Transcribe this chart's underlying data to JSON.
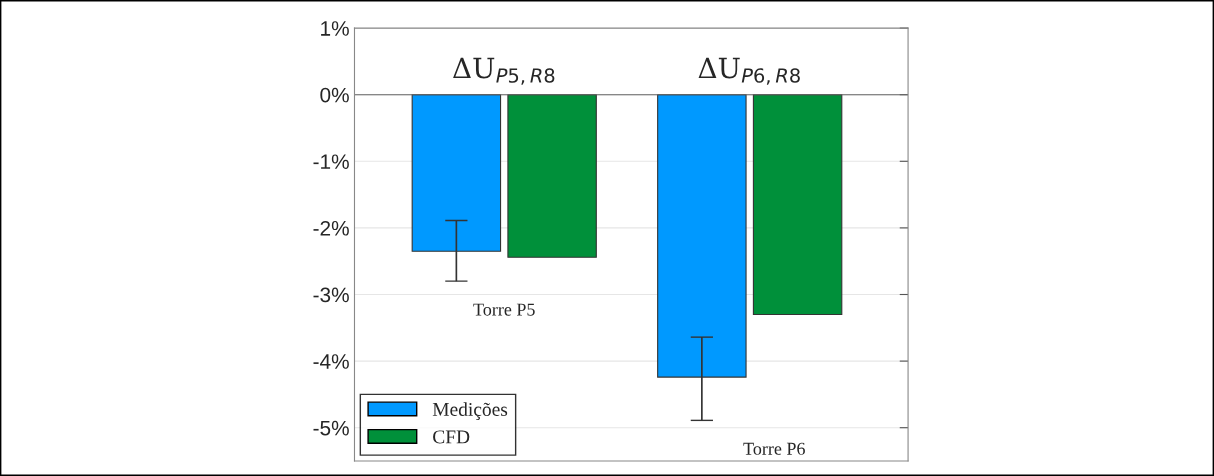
{
  "chart_data": {
    "type": "bar",
    "categories": [
      null,
      null
    ],
    "series": [
      {
        "name": "Medições",
        "color": "#0099ff",
        "values": [
          -2.35,
          -4.24
        ],
        "errors": [
          [
            -2.8,
            -1.89
          ],
          [
            -4.89,
            -3.64
          ]
        ]
      },
      {
        "name": "CFD",
        "color": "#00903a",
        "values": [
          -2.44,
          -3.3
        ]
      }
    ],
    "annotations": [
      "ΔU$_{P5,R8}$",
      "ΔU$_{P6,R8}$",
      "Torre P5",
      "Torre P6"
    ],
    "ylim": [
      -5.5,
      1
    ],
    "yticks": [
      {
        "value": 1,
        "label": "1%"
      },
      {
        "value": 0,
        "label": "0%"
      },
      {
        "value": -1,
        "label": "-1%"
      },
      {
        "value": -2,
        "label": "-2%"
      },
      {
        "value": -3,
        "label": "-3%"
      },
      {
        "value": -4,
        "label": "-4%"
      },
      {
        "value": -5,
        "label": "-5%"
      }
    ],
    "grid": "y",
    "legend": "bottom left"
  }
}
